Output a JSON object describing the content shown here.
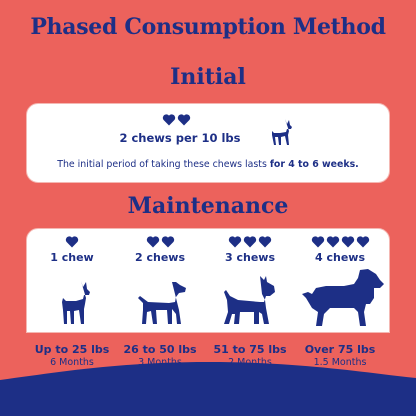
{
  "title": "Phased Consumption Method",
  "initial": {
    "heading": "Initial",
    "dose": "2 chews per 10 lbs",
    "note_prefix": "The initial period of taking these chews lasts ",
    "note_bold": "for 4 to 6 weeks."
  },
  "maintenance": {
    "heading": "Maintenance",
    "tiers": [
      {
        "chews": "1 chew",
        "hearts": 1,
        "weight": "Up to 25 lbs",
        "duration": "6 Months"
      },
      {
        "chews": "2 chews",
        "hearts": 2,
        "weight": "26 to 50 lbs",
        "duration": "3 Months"
      },
      {
        "chews": "3 chews",
        "hearts": 3,
        "weight": "51 to 75 lbs",
        "duration": "2 Months"
      },
      {
        "chews": "4 chews",
        "hearts": 4,
        "weight": "Over 75 lbs",
        "duration": "1.5 Months"
      }
    ]
  },
  "colors": {
    "background": "#EC625C",
    "navy": "#1D2F86",
    "card": "#FFFFFF"
  },
  "icons": [
    "heart-icon",
    "boston-terrier-icon",
    "pitbull-icon",
    "schnauzer-icon",
    "spaniel-icon"
  ]
}
